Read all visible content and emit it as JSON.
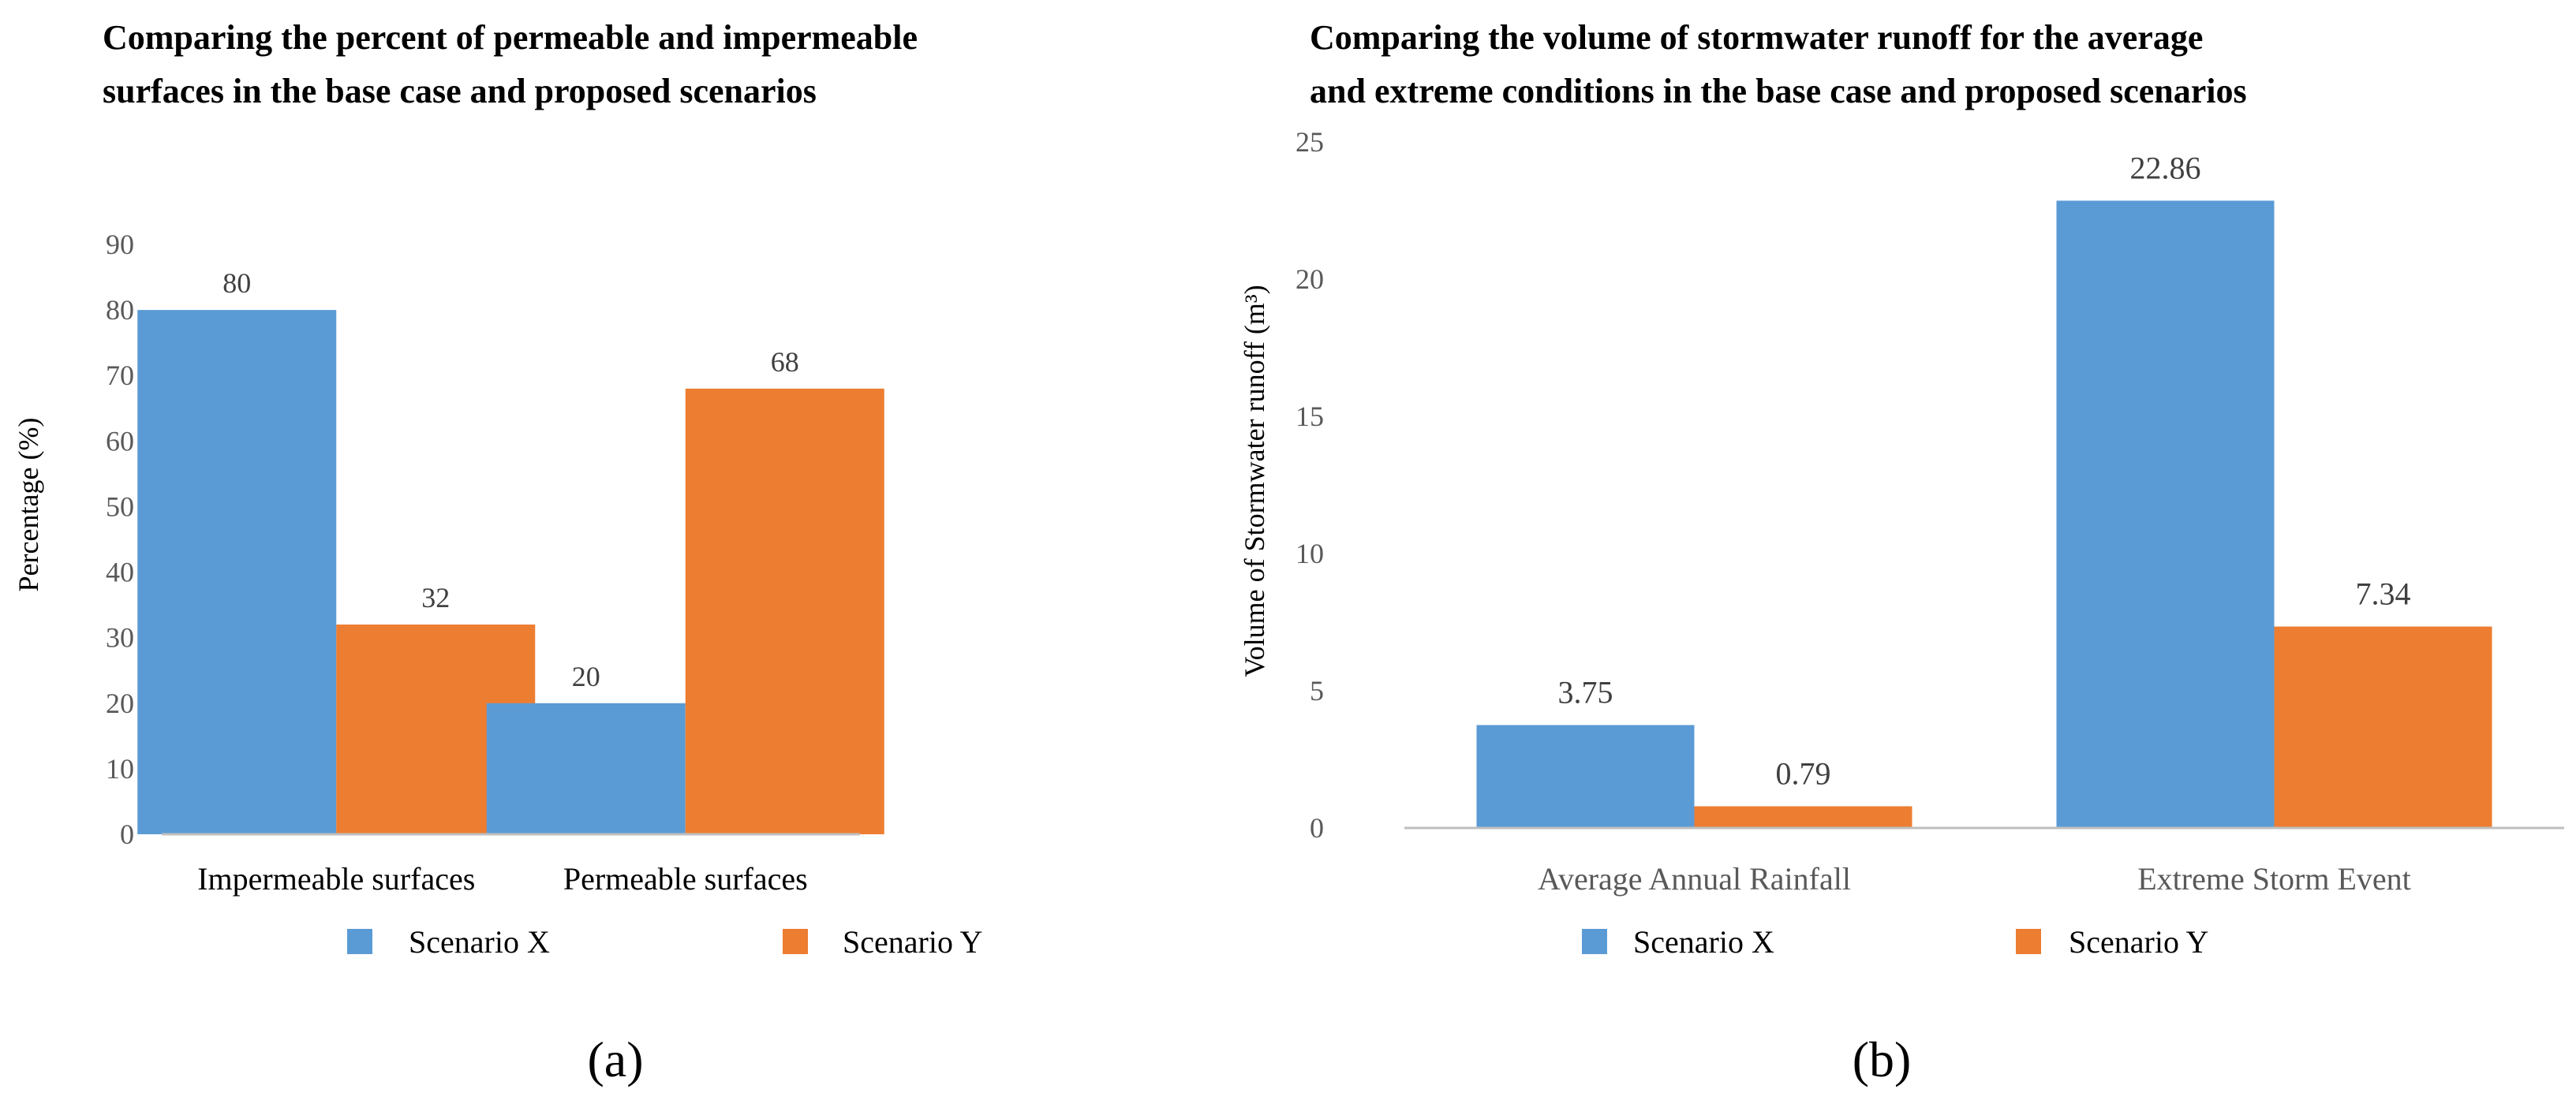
{
  "figure": {
    "panel_a_label": "(a)",
    "panel_b_label": "(b)"
  },
  "colors": {
    "scenario_x": "#5B9BD5",
    "scenario_y": "#ED7D31",
    "axis": "#BFBFBF"
  },
  "chart_data": [
    {
      "type": "bar",
      "title_lines": [
        "Comparing the percent of permeable and impermeable",
        "surfaces in the base case and proposed scenarios"
      ],
      "categories": [
        "Impermeable surfaces",
        "Permeable surfaces"
      ],
      "series": [
        {
          "name": "Scenario X",
          "values": [
            80,
            20
          ]
        },
        {
          "name": "Scenario Y",
          "values": [
            32,
            68
          ]
        }
      ],
      "ylabel": "Percentage (%)",
      "xlabel": "",
      "ylim": [
        0,
        90
      ],
      "yticks": [
        0,
        10,
        20,
        30,
        40,
        50,
        60,
        70,
        80,
        90
      ],
      "data_labels": [
        [
          "80",
          "20"
        ],
        [
          "32",
          "68"
        ]
      ],
      "grid": false,
      "legend": "bottom"
    },
    {
      "type": "bar",
      "title_lines": [
        "Comparing the volume of stormwater runoff for the average",
        "and extreme conditions in the base case and proposed scenarios"
      ],
      "categories": [
        "Average Annual Rainfall",
        "Extreme Storm Event"
      ],
      "series": [
        {
          "name": "Scenario X",
          "values": [
            3.75,
            22.86
          ]
        },
        {
          "name": "Scenario Y",
          "values": [
            0.79,
            7.34
          ]
        }
      ],
      "ylabel": "Volume of Stormwater runoff  (m³)",
      "xlabel": "",
      "ylim": [
        0,
        25
      ],
      "yticks": [
        0,
        5,
        10,
        15,
        20,
        25
      ],
      "data_labels": [
        [
          "3.75",
          "22.86"
        ],
        [
          "0.79",
          "7.34"
        ]
      ],
      "grid": false,
      "legend": "bottom"
    }
  ]
}
